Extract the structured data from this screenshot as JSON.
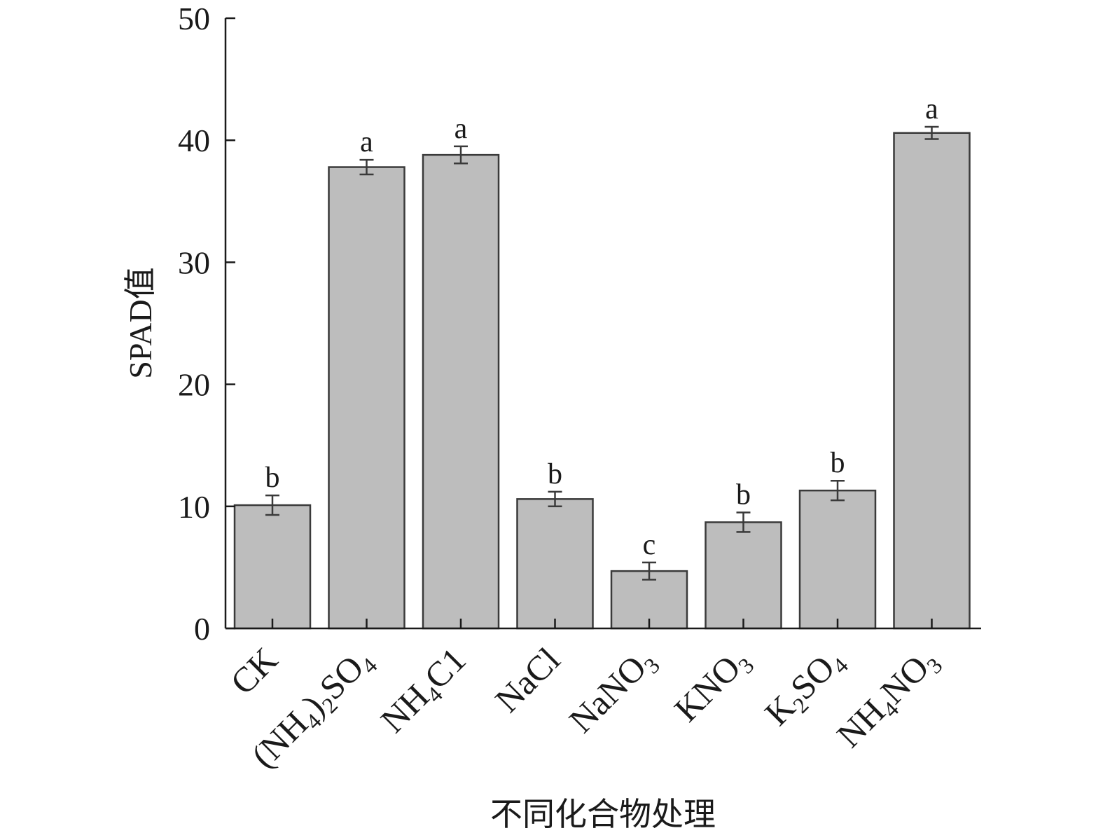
{
  "chart_data": {
    "type": "bar",
    "xlabel": "不同化合物处理",
    "ylabel": "SPAD值",
    "ylim": [
      0,
      50
    ],
    "yticks": [
      0,
      10,
      20,
      30,
      40,
      50
    ],
    "grid": false,
    "bar_color": "#bdbdbd",
    "categories": [
      {
        "base": "CK",
        "parts": [
          {
            "t": "CK"
          }
        ]
      },
      {
        "base": "(NH4)2SO4",
        "parts": [
          {
            "t": "(NH"
          },
          {
            "t": "4",
            "sub": true
          },
          {
            "t": ")"
          },
          {
            "t": "2",
            "sub": true
          },
          {
            "t": "SO"
          },
          {
            "t": "4",
            "sub": true
          }
        ]
      },
      {
        "base": "NH4Cl",
        "parts": [
          {
            "t": "NH"
          },
          {
            "t": "4",
            "sub": true
          },
          {
            "t": "C1"
          }
        ]
      },
      {
        "base": "NaCl",
        "parts": [
          {
            "t": "NaCl"
          }
        ]
      },
      {
        "base": "NaNO3",
        "parts": [
          {
            "t": "NaNO"
          },
          {
            "t": "3",
            "sub": true
          }
        ]
      },
      {
        "base": "KNO3",
        "parts": [
          {
            "t": "KNO"
          },
          {
            "t": "3",
            "sub": true
          }
        ]
      },
      {
        "base": "K2SO4",
        "parts": [
          {
            "t": "K"
          },
          {
            "t": "2",
            "sub": true
          },
          {
            "t": "SO"
          },
          {
            "t": "4",
            "sub": true
          }
        ]
      },
      {
        "base": "NH4NO3",
        "parts": [
          {
            "t": "NH"
          },
          {
            "t": "4",
            "sub": true
          },
          {
            "t": "NO"
          },
          {
            "t": "3",
            "sub": true
          }
        ]
      }
    ],
    "values": [
      10.1,
      37.8,
      38.8,
      10.6,
      4.7,
      8.7,
      11.3,
      40.6
    ],
    "errors": [
      0.8,
      0.6,
      0.7,
      0.6,
      0.7,
      0.8,
      0.8,
      0.5
    ],
    "significance": [
      "b",
      "a",
      "a",
      "b",
      "c",
      "b",
      "b",
      "a"
    ]
  }
}
